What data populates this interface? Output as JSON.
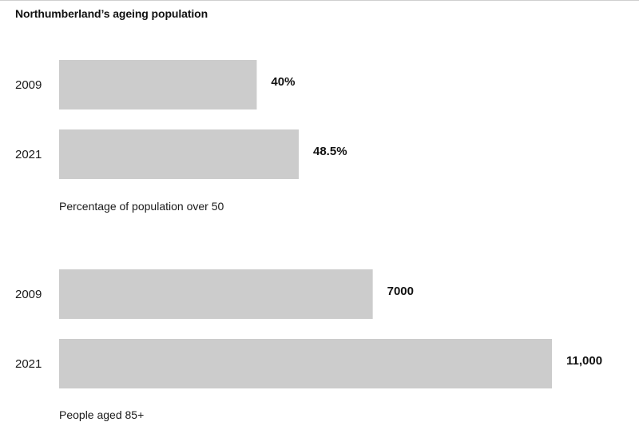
{
  "title": "Northumberland’s ageing population",
  "colors": {
    "bar": "#cccccc",
    "text": "#111111"
  },
  "chart_data": [
    {
      "type": "bar",
      "orientation": "horizontal",
      "categories": [
        "2009",
        "2021"
      ],
      "values": [
        40,
        48.5
      ],
      "value_labels": [
        "40%",
        "48.5%"
      ],
      "caption": "Percentage of population over 50",
      "xlim": [
        0,
        100
      ],
      "grid": false
    },
    {
      "type": "bar",
      "orientation": "horizontal",
      "categories": [
        "2009",
        "2021"
      ],
      "values": [
        7000,
        11000
      ],
      "value_labels": [
        "7000",
        "11,000"
      ],
      "caption": "People aged 85+",
      "xlim": [
        0,
        11000
      ],
      "grid": false
    }
  ]
}
